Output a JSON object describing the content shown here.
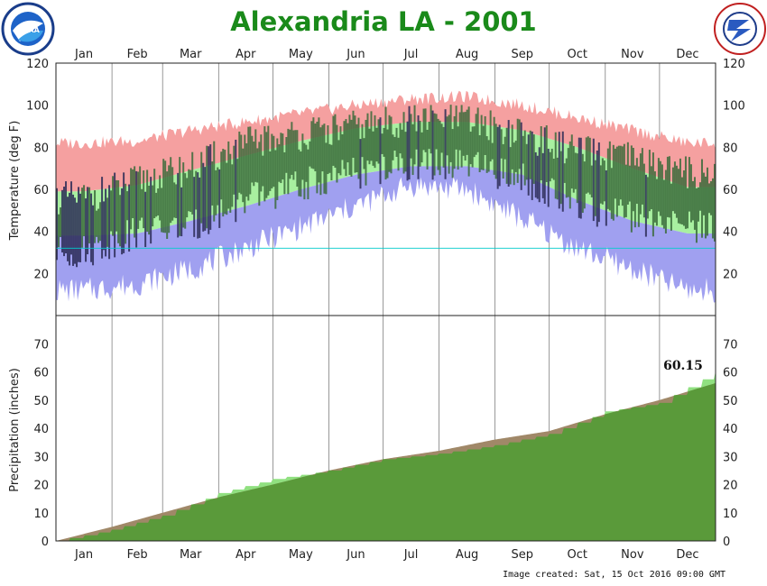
{
  "title": "Alexandria LA - 2001",
  "footer": "Image created: Sat, 15 Oct 2016 09:00 GMT",
  "logos": {
    "left": "NOAA",
    "right": "NATIONAL WEATHER SERVICE"
  },
  "colors": {
    "title": "#1a8a1a",
    "record_range": "#f5a0a0",
    "normal_range": "#a8f0a0",
    "record_low_band": "#a0a0f0",
    "observed": "#3a6a3a",
    "observed_cold": "#2a2a55",
    "precip_observed": "#5a9a3a",
    "precip_normal_excess": "#90e080",
    "precip_deficit": "#a08868",
    "freezing_line": "#00cccc",
    "grid": "#555555"
  },
  "months": [
    "Jan",
    "Feb",
    "Mar",
    "Apr",
    "May",
    "Jun",
    "Jul",
    "Aug",
    "Sep",
    "Oct",
    "Nov",
    "Dec"
  ],
  "chart_data": [
    {
      "type": "area",
      "name": "temperature",
      "xlabel": "",
      "ylabel": "Temperature (deg F)",
      "ylim": [
        0,
        120
      ],
      "yticks": [
        20,
        40,
        60,
        80,
        100,
        120
      ],
      "x_months": [
        "Jan",
        "Feb",
        "Mar",
        "Apr",
        "May",
        "Jun",
        "Jul",
        "Aug",
        "Sep",
        "Oct",
        "Nov",
        "Dec"
      ],
      "freezing_line": 32,
      "grid": true,
      "series": [
        {
          "values_month_start_normal_high": [
            59,
            62,
            69,
            76,
            83,
            89,
            92,
            92,
            88,
            80,
            70,
            61
          ]
        },
        {
          "values_month_start_normal_low": [
            38,
            39,
            45,
            52,
            60,
            67,
            71,
            71,
            67,
            55,
            45,
            39
          ]
        },
        {
          "values_month_start_record_high": [
            82,
            83,
            88,
            92,
            96,
            100,
            103,
            104,
            100,
            94,
            88,
            82
          ]
        },
        {
          "values_month_start_record_low": [
            12,
            15,
            22,
            32,
            42,
            52,
            62,
            60,
            46,
            32,
            22,
            12
          ]
        },
        {
          "values_month_observed_high": [
            56,
            64,
            70,
            82,
            86,
            90,
            93,
            93,
            86,
            78,
            74,
            68
          ]
        },
        {
          "values_month_observed_low": [
            30,
            40,
            42,
            55,
            62,
            68,
            72,
            71,
            65,
            52,
            46,
            42
          ]
        }
      ]
    },
    {
      "type": "area",
      "name": "precipitation",
      "xlabel": "",
      "ylabel": "Precipitation (inches)",
      "ylim": [
        0,
        80
      ],
      "yticks": [
        0,
        10,
        20,
        30,
        40,
        50,
        60,
        70
      ],
      "x_months": [
        "Jan",
        "Feb",
        "Mar",
        "Apr",
        "May",
        "Jun",
        "Jul",
        "Aug",
        "Sep",
        "Oct",
        "Nov",
        "Dec"
      ],
      "total_label": "60.15",
      "grid": true,
      "series": [
        {
          "values_month_start_normal_cumulative": [
            0,
            5,
            10,
            15.5,
            20,
            25,
            29,
            32,
            36,
            39,
            45,
            50,
            56
          ]
        },
        {
          "values_month_start_observed_cumulative": [
            0,
            4,
            9,
            17,
            22,
            25,
            29,
            31,
            34,
            38,
            46,
            49,
            60.15
          ]
        }
      ]
    }
  ]
}
